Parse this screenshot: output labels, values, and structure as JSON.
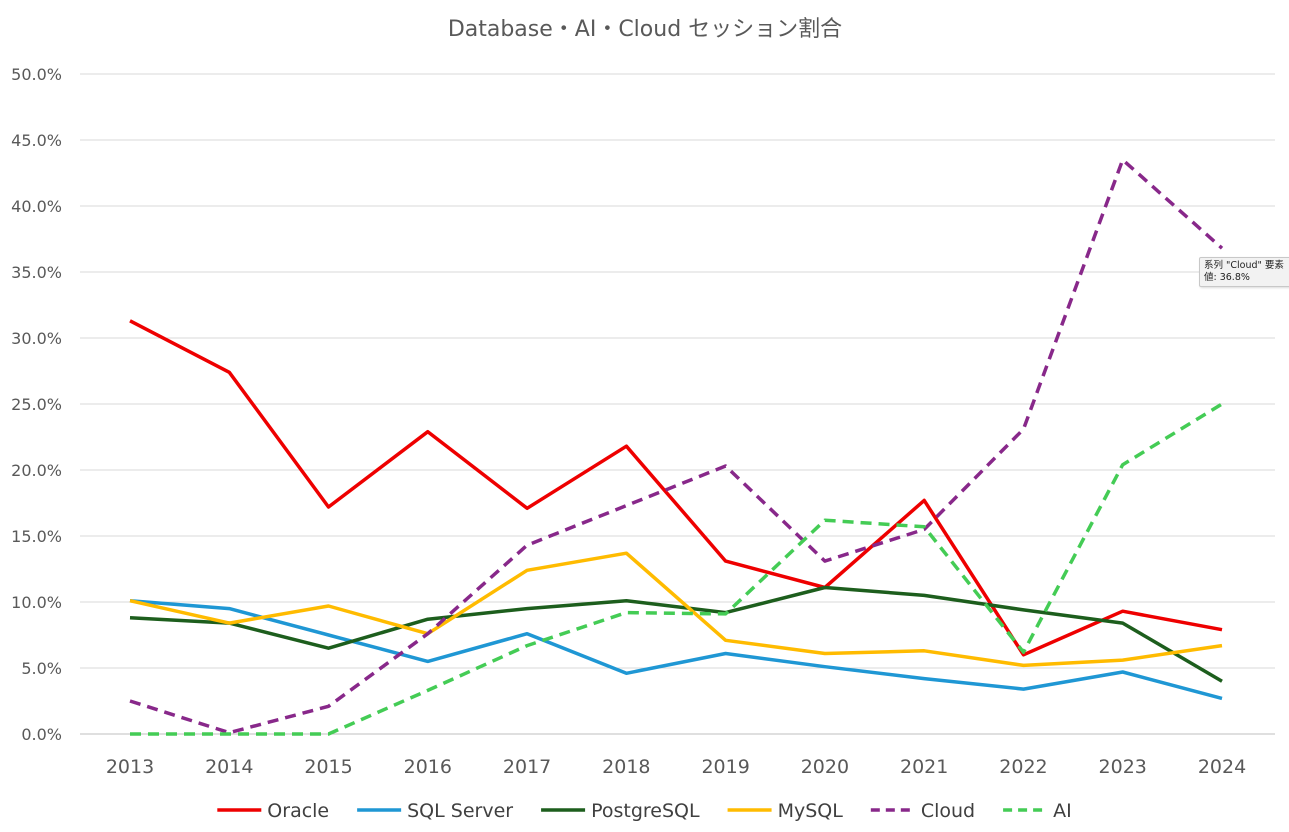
{
  "chart_data": {
    "type": "line",
    "title": "Database・AI・Cloud セッション割合",
    "categories": [
      "2013",
      "2014",
      "2015",
      "2016",
      "2017",
      "2018",
      "2019",
      "2020",
      "2021",
      "2022",
      "2023",
      "2024"
    ],
    "y_ticks": [
      "0.0%",
      "5.0%",
      "10.0%",
      "15.0%",
      "20.0%",
      "25.0%",
      "30.0%",
      "35.0%",
      "40.0%",
      "45.0%",
      "50.0%"
    ],
    "ylim": [
      0,
      50
    ],
    "y_unit": "%",
    "grid": "horizontal",
    "legend_position": "bottom",
    "series": [
      {
        "name": "Oracle",
        "color": "#ee0000",
        "dashed": false,
        "values": [
          31.3,
          27.4,
          17.2,
          22.9,
          17.1,
          21.8,
          13.1,
          11.1,
          17.7,
          6.0,
          9.3,
          7.9
        ]
      },
      {
        "name": "SQL Server",
        "color": "#1f97d4",
        "dashed": false,
        "values": [
          10.1,
          9.5,
          7.5,
          5.5,
          7.6,
          4.6,
          6.1,
          5.1,
          4.2,
          3.4,
          4.7,
          2.7
        ]
      },
      {
        "name": "PostgreSQL",
        "color": "#1d5e1d",
        "dashed": false,
        "values": [
          8.8,
          8.4,
          6.5,
          8.7,
          9.5,
          10.1,
          9.2,
          11.1,
          10.5,
          9.4,
          8.4,
          4.0
        ]
      },
      {
        "name": "MySQL",
        "color": "#ffbb00",
        "dashed": false,
        "values": [
          10.1,
          8.4,
          9.7,
          7.6,
          12.4,
          13.7,
          7.1,
          6.1,
          6.3,
          5.2,
          5.6,
          6.7
        ]
      },
      {
        "name": "Cloud",
        "color": "#88288a",
        "dashed": true,
        "values": [
          2.5,
          0.1,
          2.1,
          7.6,
          14.3,
          17.3,
          20.3,
          13.1,
          15.5,
          23.1,
          43.5,
          36.8
        ]
      },
      {
        "name": "AI",
        "color": "#44cc55",
        "dashed": true,
        "values": [
          0.0,
          0.0,
          0.0,
          3.3,
          6.7,
          9.2,
          9.1,
          16.2,
          15.7,
          6.2,
          20.4,
          25.0
        ]
      }
    ]
  },
  "tooltip": {
    "line1": "系列 \"Cloud\" 要素",
    "line2": "値: 36.8%"
  }
}
